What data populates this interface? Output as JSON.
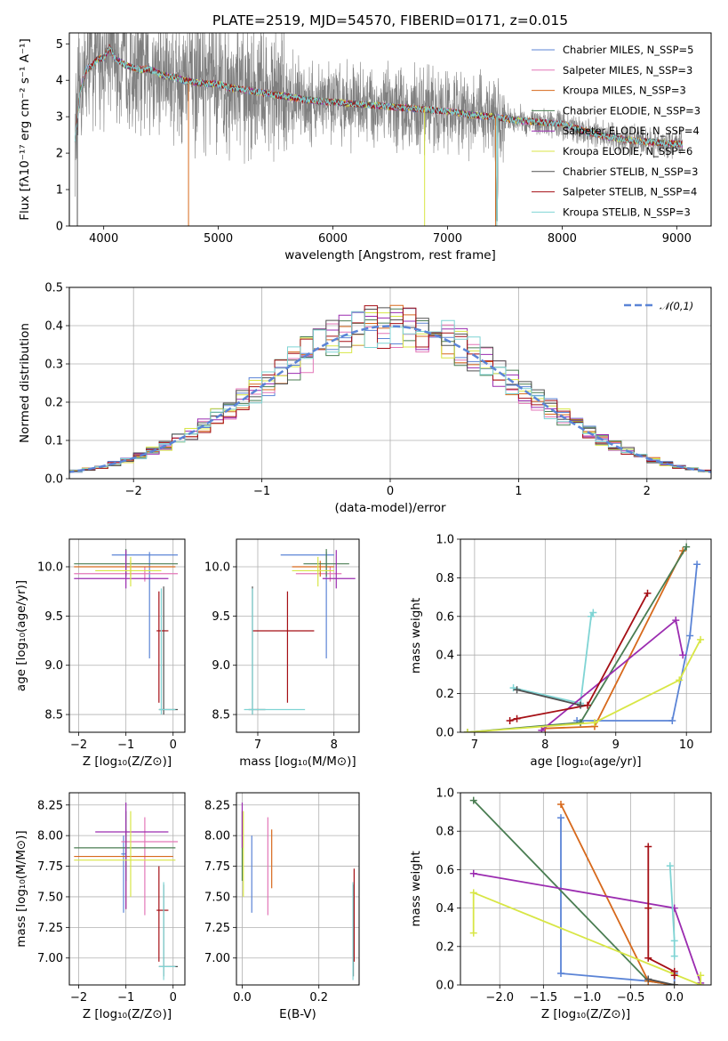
{
  "colors": {
    "c0": "#5b84d6",
    "c1": "#e377b8",
    "c2": "#d7691c",
    "c3": "#4a7d52",
    "c4": "#9b2cb0",
    "c5": "#d8e645",
    "c6": "#505050",
    "c7": "#a50f15",
    "c8": "#7fd4d4",
    "data": "#7f7f7f",
    "grid": "#b0b0b0"
  },
  "chart_data": [
    {
      "id": "spectrum",
      "type": "line",
      "title": "PLATE=2519, MJD=54570, FIBERID=0171, z=0.015",
      "xlabel": "wavelength [Angstrom, rest frame]",
      "ylabel": "Flux [fλ10⁻¹⁷ erg cm⁻² s⁻¹ A⁻¹]",
      "xlim": [
        3700,
        9300
      ],
      "ylim": [
        0,
        5.3
      ],
      "xticks": [
        4000,
        5000,
        6000,
        7000,
        8000,
        9000
      ],
      "yticks": [
        0,
        1,
        2,
        3,
        4,
        5
      ],
      "grid": false,
      "legend": "right",
      "model_continuum": {
        "x": [
          3750,
          3800,
          3850,
          3900,
          3950,
          4000,
          4050,
          4100,
          4200,
          4300,
          4400,
          4500,
          4600,
          4700,
          4800,
          4900,
          5000,
          5100,
          5200,
          5300,
          5400,
          5500,
          5600,
          5800,
          6000,
          6200,
          6400,
          6600,
          6800,
          7000,
          7200,
          7400,
          7600,
          7800,
          8000,
          8200,
          8400,
          8600,
          8800,
          9000
        ],
        "y": [
          2.4,
          3.8,
          4.3,
          4.4,
          4.6,
          4.6,
          4.9,
          4.6,
          4.4,
          4.3,
          4.3,
          4.15,
          4.1,
          4.0,
          3.95,
          3.9,
          3.9,
          3.8,
          3.75,
          3.7,
          3.65,
          3.6,
          3.55,
          3.45,
          3.4,
          3.35,
          3.3,
          3.25,
          3.2,
          3.15,
          3.05,
          3.0,
          2.9,
          2.85,
          2.8,
          2.6,
          2.45,
          2.35,
          2.3,
          2.25
        ]
      },
      "series": [
        {
          "name": "Chabrier MILES, N_SSP=5"
        },
        {
          "name": "Salpeter MILES, N_SSP=3"
        },
        {
          "name": "Kroupa MILES, N_SSP=3"
        },
        {
          "name": "Chabrier ELODIE, N_SSP=3"
        },
        {
          "name": "Salpeter ELODIE, N_SSP=4"
        },
        {
          "name": "Kroupa ELODIE, N_SSP=6"
        },
        {
          "name": "Chabrier STELIB, N_SSP=3"
        },
        {
          "name": "Salpeter STELIB, N_SSP=4"
        },
        {
          "name": "Kroupa STELIB, N_SSP=3"
        }
      ]
    },
    {
      "id": "residuals",
      "type": "line",
      "xlabel": "(data-model)/error",
      "ylabel": "Normed distribution",
      "xlim": [
        -2.5,
        2.5
      ],
      "ylim": [
        0,
        0.5
      ],
      "xticks": [
        -2,
        -1,
        0,
        1,
        2
      ],
      "yticks": [
        0.0,
        0.1,
        0.2,
        0.3,
        0.4,
        0.5
      ],
      "grid": true,
      "legend": "top-right",
      "reference": {
        "name": "𝒩(0,1)",
        "mean": 0,
        "sigma": 1
      },
      "bin_width": 0.1
    },
    {
      "id": "age_vs_Z",
      "type": "scatter",
      "xlabel": "Z [log₁₀(Z/Z⊙)]",
      "ylabel": "age [log₁₀(age/yr)]",
      "xlim": [
        -2.2,
        0.25
      ],
      "ylim": [
        8.32,
        10.28
      ],
      "xticks": [
        -2,
        -1,
        0
      ],
      "yticks": [
        8.5,
        9.0,
        9.5,
        10.0
      ],
      "grid": true,
      "points": [
        {
          "s": 0,
          "x": -0.5,
          "y": 10.12,
          "xe": [
            -1.3,
            0.1
          ],
          "ye": [
            9.07,
            10.15
          ]
        },
        {
          "s": 1,
          "x": -0.6,
          "y": 9.93,
          "xe": [
            -2.1,
            0.1
          ],
          "ye": [
            9.85,
            10.0
          ]
        },
        {
          "s": 2,
          "x": -0.9,
          "y": 10.0,
          "xe": [
            -2.1,
            0.05
          ],
          "ye": [
            9.9,
            10.06
          ]
        },
        {
          "s": 3,
          "x": -1.0,
          "y": 10.03,
          "xe": [
            -2.1,
            0.1
          ],
          "ye": [
            9.9,
            10.18
          ]
        },
        {
          "s": 4,
          "x": -1.0,
          "y": 9.88,
          "xe": [
            -2.1,
            -0.1
          ],
          "ye": [
            9.78,
            10.17
          ]
        },
        {
          "s": 5,
          "x": -0.9,
          "y": 9.96,
          "xe": [
            -1.65,
            -0.25
          ],
          "ye": [
            9.8,
            10.1
          ]
        },
        {
          "s": 6,
          "x": -0.2,
          "y": 8.55,
          "xe": [
            -0.3,
            0.1
          ],
          "ye": [
            8.5,
            9.8
          ]
        },
        {
          "s": 7,
          "x": -0.3,
          "y": 9.35,
          "xe": [
            -0.35,
            -0.1
          ],
          "ye": [
            8.62,
            9.75
          ]
        },
        {
          "s": 8,
          "x": -0.25,
          "y": 8.55,
          "xe": [
            -0.3,
            0.05
          ],
          "ye": [
            8.5,
            9.78
          ]
        }
      ]
    },
    {
      "id": "age_vs_mass",
      "type": "scatter",
      "xlabel": "mass [log₁₀(M/M⊙)]",
      "ylabel": "",
      "xlim": [
        6.72,
        8.33
      ],
      "ylim": [
        8.32,
        10.28
      ],
      "xticks": [
        7,
        8
      ],
      "yticks": [
        8.5,
        9.0,
        9.5,
        10.0
      ],
      "grid": true,
      "points": [
        {
          "s": 0,
          "x": 7.9,
          "y": 10.12,
          "xe": [
            7.3,
            8.0
          ],
          "ye": [
            9.07,
            10.15
          ]
        },
        {
          "s": 1,
          "x": 7.95,
          "y": 9.93,
          "xe": [
            7.5,
            8.1
          ],
          "ye": [
            9.85,
            10.0
          ]
        },
        {
          "s": 2,
          "x": 7.82,
          "y": 10.0,
          "xe": [
            7.45,
            8.0
          ],
          "ye": [
            9.9,
            10.06
          ]
        },
        {
          "s": 3,
          "x": 7.9,
          "y": 10.03,
          "xe": [
            7.6,
            8.2
          ],
          "ye": [
            9.9,
            10.18
          ]
        },
        {
          "s": 4,
          "x": 8.03,
          "y": 9.88,
          "xe": [
            7.85,
            8.28
          ],
          "ye": [
            9.78,
            10.17
          ]
        },
        {
          "s": 5,
          "x": 7.79,
          "y": 9.96,
          "xe": [
            7.45,
            8.0
          ],
          "ye": [
            9.8,
            10.1
          ]
        },
        {
          "s": 6,
          "x": 6.93,
          "y": 8.55,
          "xe": [
            6.88,
            7.1
          ],
          "ye": [
            8.5,
            9.8
          ]
        },
        {
          "s": 7,
          "x": 7.39,
          "y": 9.35,
          "xe": [
            6.93,
            7.74
          ],
          "ye": [
            8.62,
            9.75
          ]
        },
        {
          "s": 8,
          "x": 6.93,
          "y": 8.55,
          "xe": [
            6.82,
            7.62
          ],
          "ye": [
            8.5,
            9.78
          ]
        }
      ]
    },
    {
      "id": "weight_vs_age",
      "type": "line",
      "xlabel": "age [log₁₀(age/yr)]",
      "ylabel": "mass weight",
      "xlim": [
        6.8,
        10.35
      ],
      "ylim": [
        0,
        1
      ],
      "xticks": [
        7,
        8,
        9,
        10
      ],
      "yticks": [
        0.0,
        0.2,
        0.4,
        0.6,
        0.8,
        1.0
      ],
      "grid": true,
      "series": [
        {
          "s": 0,
          "x": [
            8.45,
            9.8,
            10.05,
            10.15
          ],
          "y": [
            0.06,
            0.06,
            0.5,
            0.87
          ]
        },
        {
          "s": 8,
          "x": [
            7.55,
            8.5,
            8.65,
            8.68
          ],
          "y": [
            0.23,
            0.15,
            0.6,
            0.62
          ]
        },
        {
          "s": 2,
          "x": [
            8.0,
            8.7,
            9.95
          ],
          "y": [
            0.02,
            0.03,
            0.94
          ]
        },
        {
          "s": 3,
          "x": [
            6.9,
            8.5,
            10.0
          ],
          "y": [
            0.0,
            0.05,
            0.96
          ]
        },
        {
          "s": 4,
          "x": [
            7.95,
            9.85,
            9.95
          ],
          "y": [
            0.01,
            0.58,
            0.4
          ]
        },
        {
          "s": 5,
          "x": [
            6.9,
            8.7,
            9.9,
            10.2
          ],
          "y": [
            0.0,
            0.05,
            0.27,
            0.48
          ]
        },
        {
          "s": 7,
          "x": [
            7.5,
            7.6,
            8.6,
            9.45
          ],
          "y": [
            0.06,
            0.07,
            0.14,
            0.72
          ]
        },
        {
          "s": 6,
          "x": [
            7.6,
            8.5
          ],
          "y": [
            0.22,
            0.14
          ]
        }
      ]
    },
    {
      "id": "mass_vs_Z",
      "type": "scatter",
      "xlabel": "Z [log₁₀(Z/Z⊙)]",
      "ylabel": "mass [log₁₀(M/M⊙)]",
      "xlim": [
        -2.2,
        0.25
      ],
      "ylim": [
        6.78,
        8.35
      ],
      "xticks": [
        -2,
        -1,
        0
      ],
      "yticks": [
        7.0,
        7.25,
        7.5,
        7.75,
        8.0,
        8.25
      ],
      "grid": true,
      "points": [
        {
          "s": 0,
          "x": -1.05,
          "y": 7.85,
          "xe": [
            -1.1,
            -1.0
          ],
          "ye": [
            7.37,
            8.0
          ]
        },
        {
          "s": 1,
          "x": -0.6,
          "y": 7.95,
          "xe": [
            -1.1,
            0.1
          ],
          "ye": [
            7.35,
            8.15
          ]
        },
        {
          "s": 2,
          "x": -1.0,
          "y": 7.83,
          "xe": [
            -2.1,
            0.0
          ],
          "ye": [
            7.4,
            8.05
          ]
        },
        {
          "s": 3,
          "x": -1.0,
          "y": 7.9,
          "xe": [
            -2.1,
            0.05
          ],
          "ye": [
            7.63,
            8.2
          ]
        },
        {
          "s": 4,
          "x": -1.0,
          "y": 8.03,
          "xe": [
            -1.65,
            -0.1
          ],
          "ye": [
            7.4,
            8.27
          ]
        },
        {
          "s": 5,
          "x": -0.9,
          "y": 7.8,
          "xe": [
            -2.1,
            0.05
          ],
          "ye": [
            7.5,
            8.2
          ]
        },
        {
          "s": 6,
          "x": -0.2,
          "y": 6.93,
          "xe": [
            -0.3,
            0.1
          ],
          "ye": [
            6.85,
            7.6
          ]
        },
        {
          "s": 7,
          "x": -0.3,
          "y": 7.39,
          "xe": [
            -0.35,
            -0.1
          ],
          "ye": [
            6.97,
            7.75
          ]
        },
        {
          "s": 8,
          "x": -0.2,
          "y": 6.93,
          "xe": [
            -0.3,
            0.05
          ],
          "ye": [
            6.82,
            7.62
          ]
        }
      ]
    },
    {
      "id": "mass_vs_EBV",
      "type": "scatter",
      "xlabel": "E(B-V)",
      "ylabel": "",
      "xlim": [
        -0.015,
        0.305
      ],
      "ylim": [
        6.78,
        8.35
      ],
      "xticks": [
        0.0,
        0.2
      ],
      "yticks": [
        7.0,
        7.25,
        7.5,
        7.75,
        8.0,
        8.25
      ],
      "grid": true,
      "points": [
        {
          "s": 0,
          "x": 0.025,
          "y": 7.7,
          "ye": [
            7.37,
            8.0
          ]
        },
        {
          "s": 1,
          "x": 0.067,
          "y": 7.7,
          "ye": [
            7.35,
            8.15
          ]
        },
        {
          "s": 2,
          "x": 0.077,
          "y": 7.8,
          "ye": [
            7.57,
            8.05
          ]
        },
        {
          "s": 3,
          "x": 0.0,
          "y": 7.9,
          "ye": [
            7.63,
            8.2
          ]
        },
        {
          "s": 4,
          "x": 0.0,
          "y": 8.1,
          "ye": [
            7.9,
            8.27
          ]
        },
        {
          "s": 5,
          "x": 0.003,
          "y": 7.85,
          "ye": [
            7.5,
            8.2
          ]
        },
        {
          "s": 6,
          "x": 0.29,
          "y": 7.2,
          "ye": [
            6.85,
            7.6
          ]
        },
        {
          "s": 7,
          "x": 0.292,
          "y": 7.39,
          "ye": [
            6.97,
            7.73
          ]
        },
        {
          "s": 8,
          "x": 0.289,
          "y": 7.2,
          "ye": [
            6.82,
            7.62
          ]
        }
      ]
    },
    {
      "id": "weight_vs_Z",
      "type": "line",
      "xlabel": "Z [log₁₀(Z/Z⊙)]",
      "ylabel": "mass weight",
      "xlim": [
        -2.45,
        0.42
      ],
      "ylim": [
        0,
        1
      ],
      "xticks": [
        -2.0,
        -1.5,
        -1.0,
        -0.5,
        0.0
      ],
      "yticks": [
        0.0,
        0.2,
        0.4,
        0.6,
        0.8,
        1.0
      ],
      "grid": true,
      "series": [
        {
          "s": 0,
          "x": [
            -1.3,
            -1.3,
            -0.3,
            0.0,
            0.0
          ],
          "y": [
            0.87,
            0.06,
            0.02,
            0.0,
            0.06
          ]
        },
        {
          "s": 3,
          "x": [
            -2.3,
            -0.3,
            0.0
          ],
          "y": [
            0.96,
            0.02,
            0.0
          ]
        },
        {
          "s": 2,
          "x": [
            -1.3,
            -0.3,
            0.0
          ],
          "y": [
            0.94,
            0.02,
            0.0
          ]
        },
        {
          "s": 4,
          "x": [
            -2.3,
            0.0,
            0.3
          ],
          "y": [
            0.58,
            0.4,
            0.01
          ]
        },
        {
          "s": 5,
          "x": [
            -2.3,
            -2.3,
            0.3,
            0.3
          ],
          "y": [
            0.27,
            0.48,
            0.0,
            0.05
          ]
        },
        {
          "s": 7,
          "x": [
            -0.3,
            -0.3,
            -0.3,
            0.0,
            0.0
          ],
          "y": [
            0.72,
            0.4,
            0.14,
            0.07,
            0.05
          ]
        },
        {
          "s": 8,
          "x": [
            -0.05,
            0.0,
            0.0
          ],
          "y": [
            0.62,
            0.23,
            0.15
          ]
        },
        {
          "s": 6,
          "x": [
            -0.3,
            0.0
          ],
          "y": [
            0.03,
            0.0
          ]
        }
      ]
    }
  ]
}
